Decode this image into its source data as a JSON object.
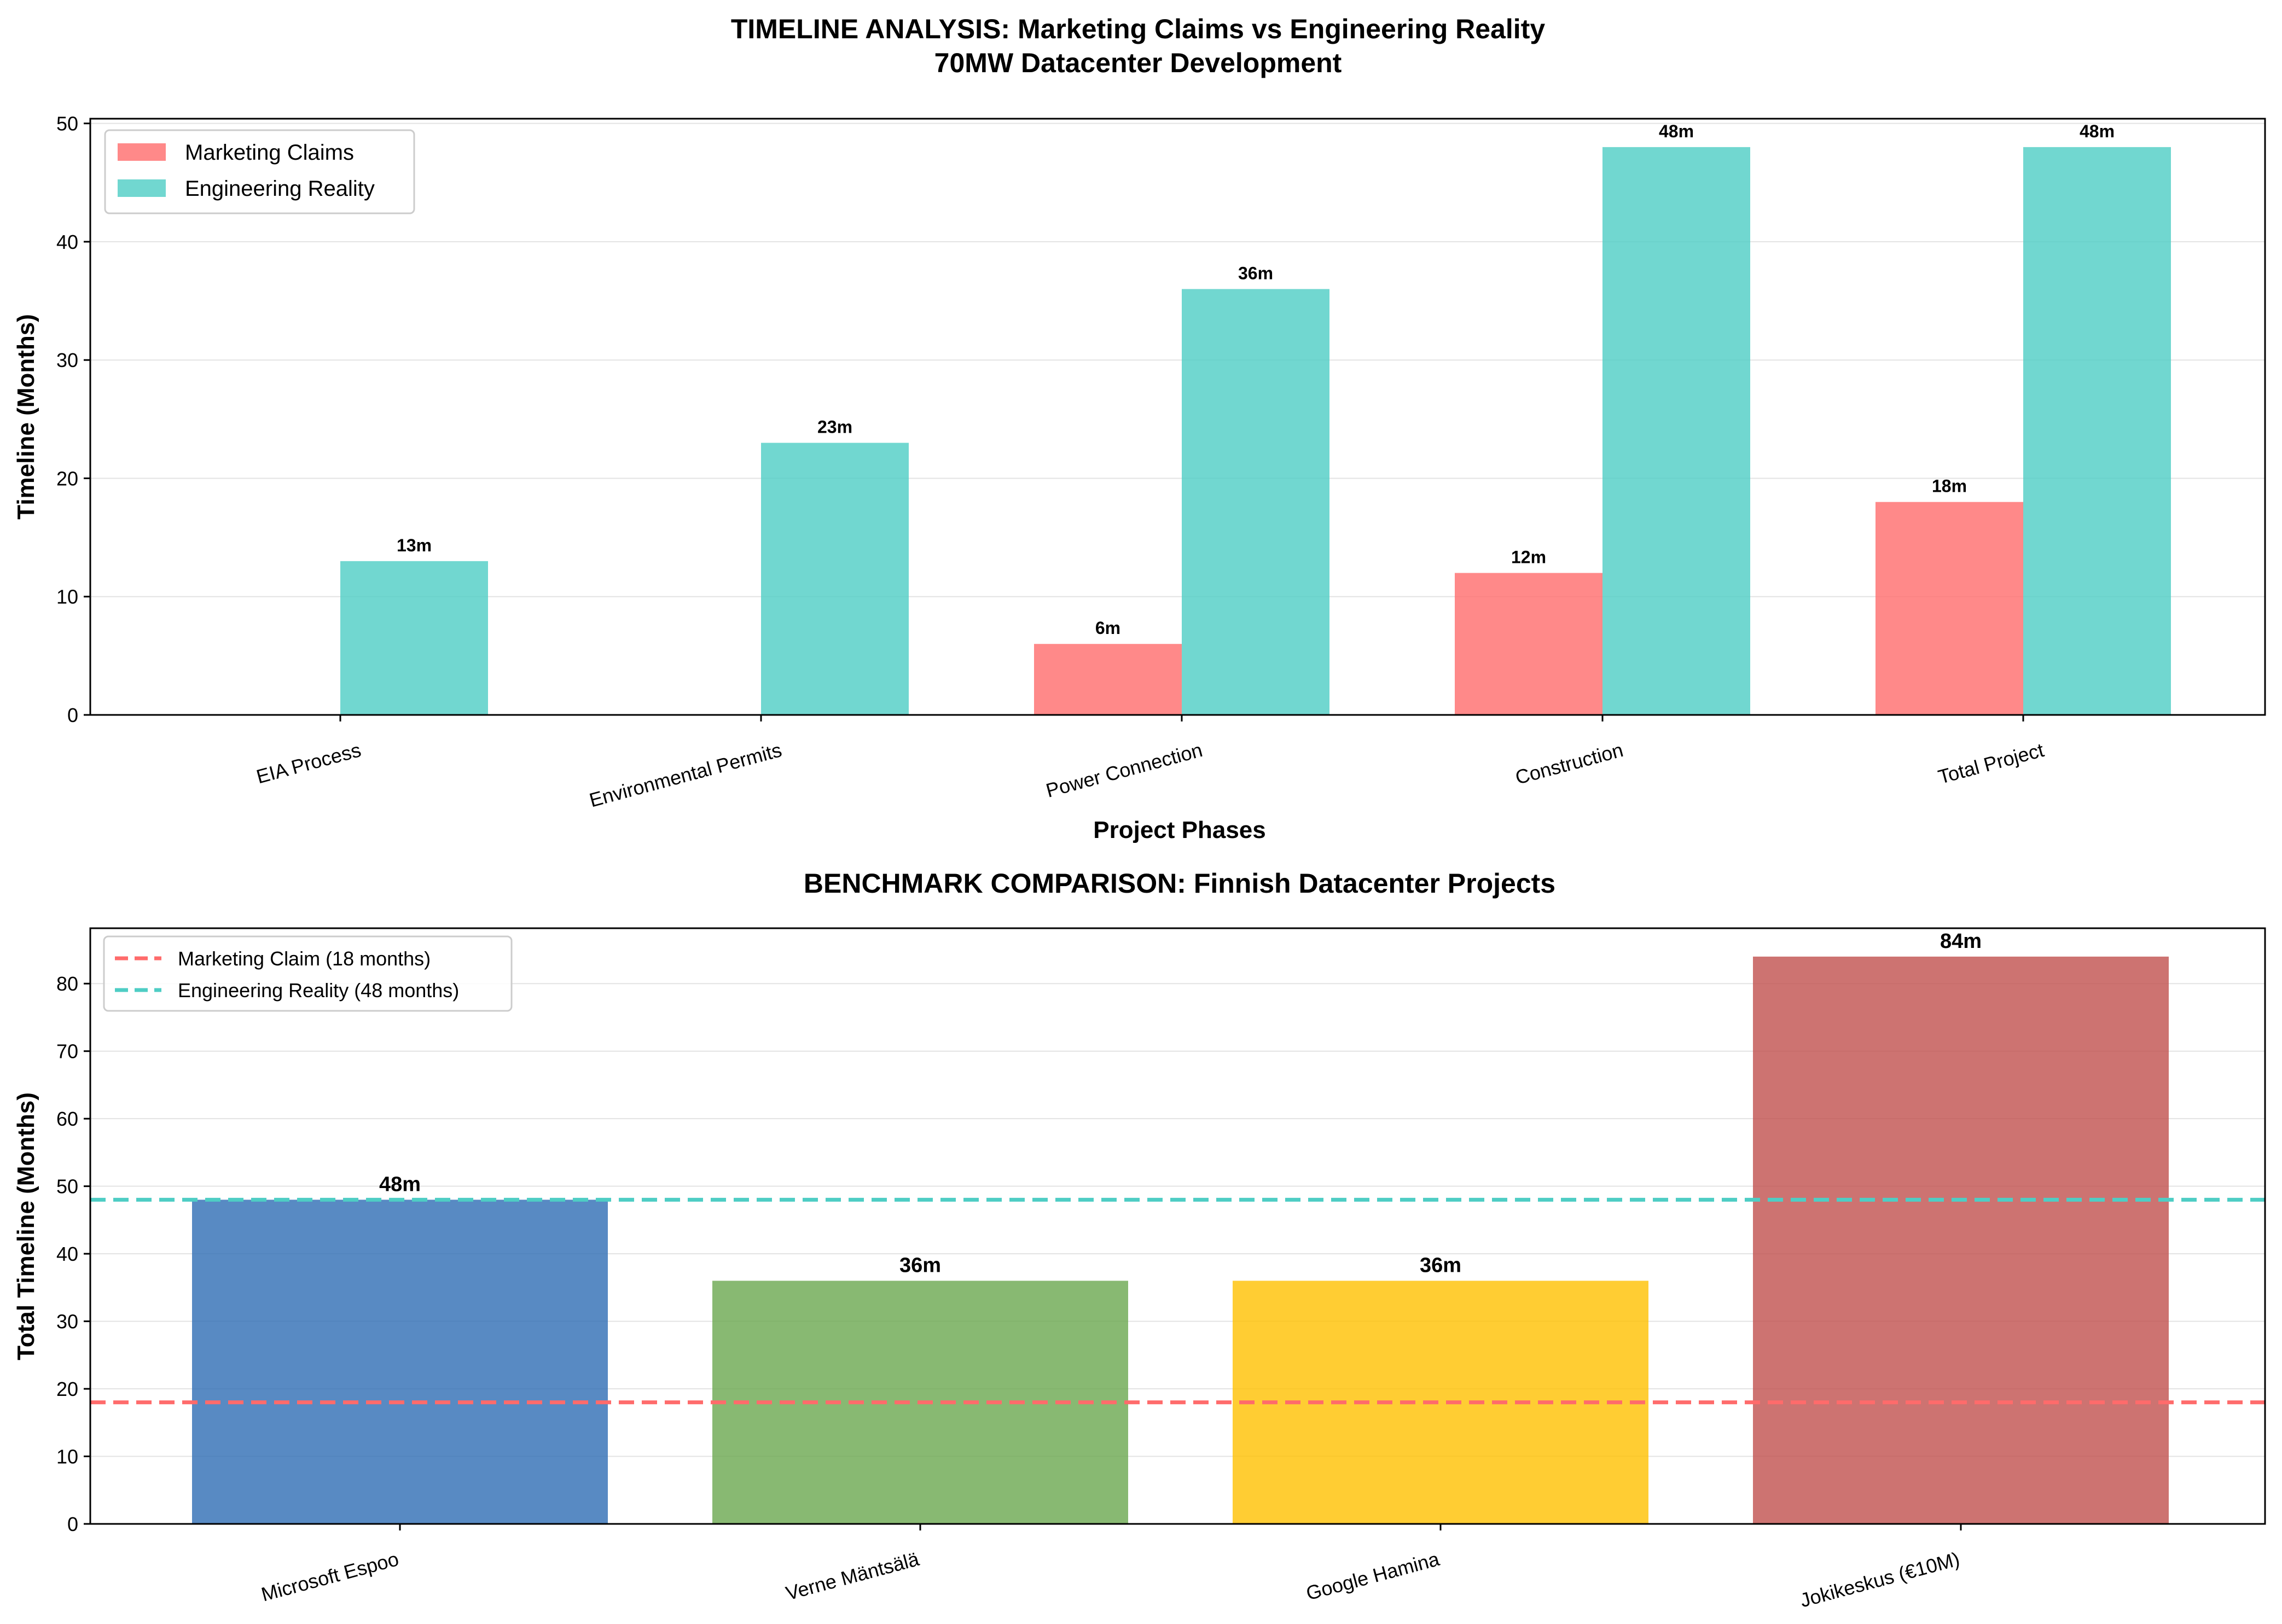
{
  "chart_data": [
    {
      "type": "bar",
      "title": "TIMELINE ANALYSIS: Marketing Claims vs Engineering Reality",
      "subtitle": "70MW Datacenter Development",
      "xlabel": "Project Phases",
      "ylabel": "Timeline (Months)",
      "ylim": [
        0,
        50.4
      ],
      "yticks": [
        0,
        10,
        20,
        30,
        40,
        50
      ],
      "grid": "y",
      "legend_position": "upper-left",
      "categories": [
        "EIA Process",
        "Environmental Permits",
        "Power Connection",
        "Construction",
        "Total Project"
      ],
      "series": [
        {
          "name": "Marketing Claims",
          "color": "#FF6B6B",
          "values": [
            0,
            0,
            6,
            12,
            18
          ],
          "labels": [
            "",
            "",
            "6m",
            "12m",
            "18m"
          ]
        },
        {
          "name": "Engineering Reality",
          "color": "#4ECDC4",
          "values": [
            13,
            23,
            36,
            48,
            48
          ],
          "labels": [
            "13m",
            "23m",
            "36m",
            "48m",
            "48m"
          ]
        }
      ]
    },
    {
      "type": "bar",
      "title": "BENCHMARK COMPARISON: Finnish Datacenter Projects",
      "ylabel": "Total Timeline (Months)",
      "ylim": [
        0,
        88.2
      ],
      "yticks": [
        0,
        10,
        20,
        30,
        40,
        50,
        60,
        70,
        80
      ],
      "grid": "y",
      "legend_position": "upper-left",
      "categories": [
        "Microsoft Espoo",
        "Verne Mäntsälä",
        "Google Hamina",
        "Jokikeskus (€10M)"
      ],
      "values": [
        48,
        36,
        36,
        84
      ],
      "labels": [
        "48m",
        "36m",
        "36m",
        "84m"
      ],
      "colors": [
        "#2E6DB4",
        "#6AA84F",
        "#FFC000",
        "#C0504D"
      ],
      "reference_lines": [
        {
          "name": "Marketing Claim (18 months)",
          "value": 18,
          "color": "#FF6B6B"
        },
        {
          "name": "Engineering Reality (48 months)",
          "value": 48,
          "color": "#4ECDC4"
        }
      ]
    }
  ]
}
